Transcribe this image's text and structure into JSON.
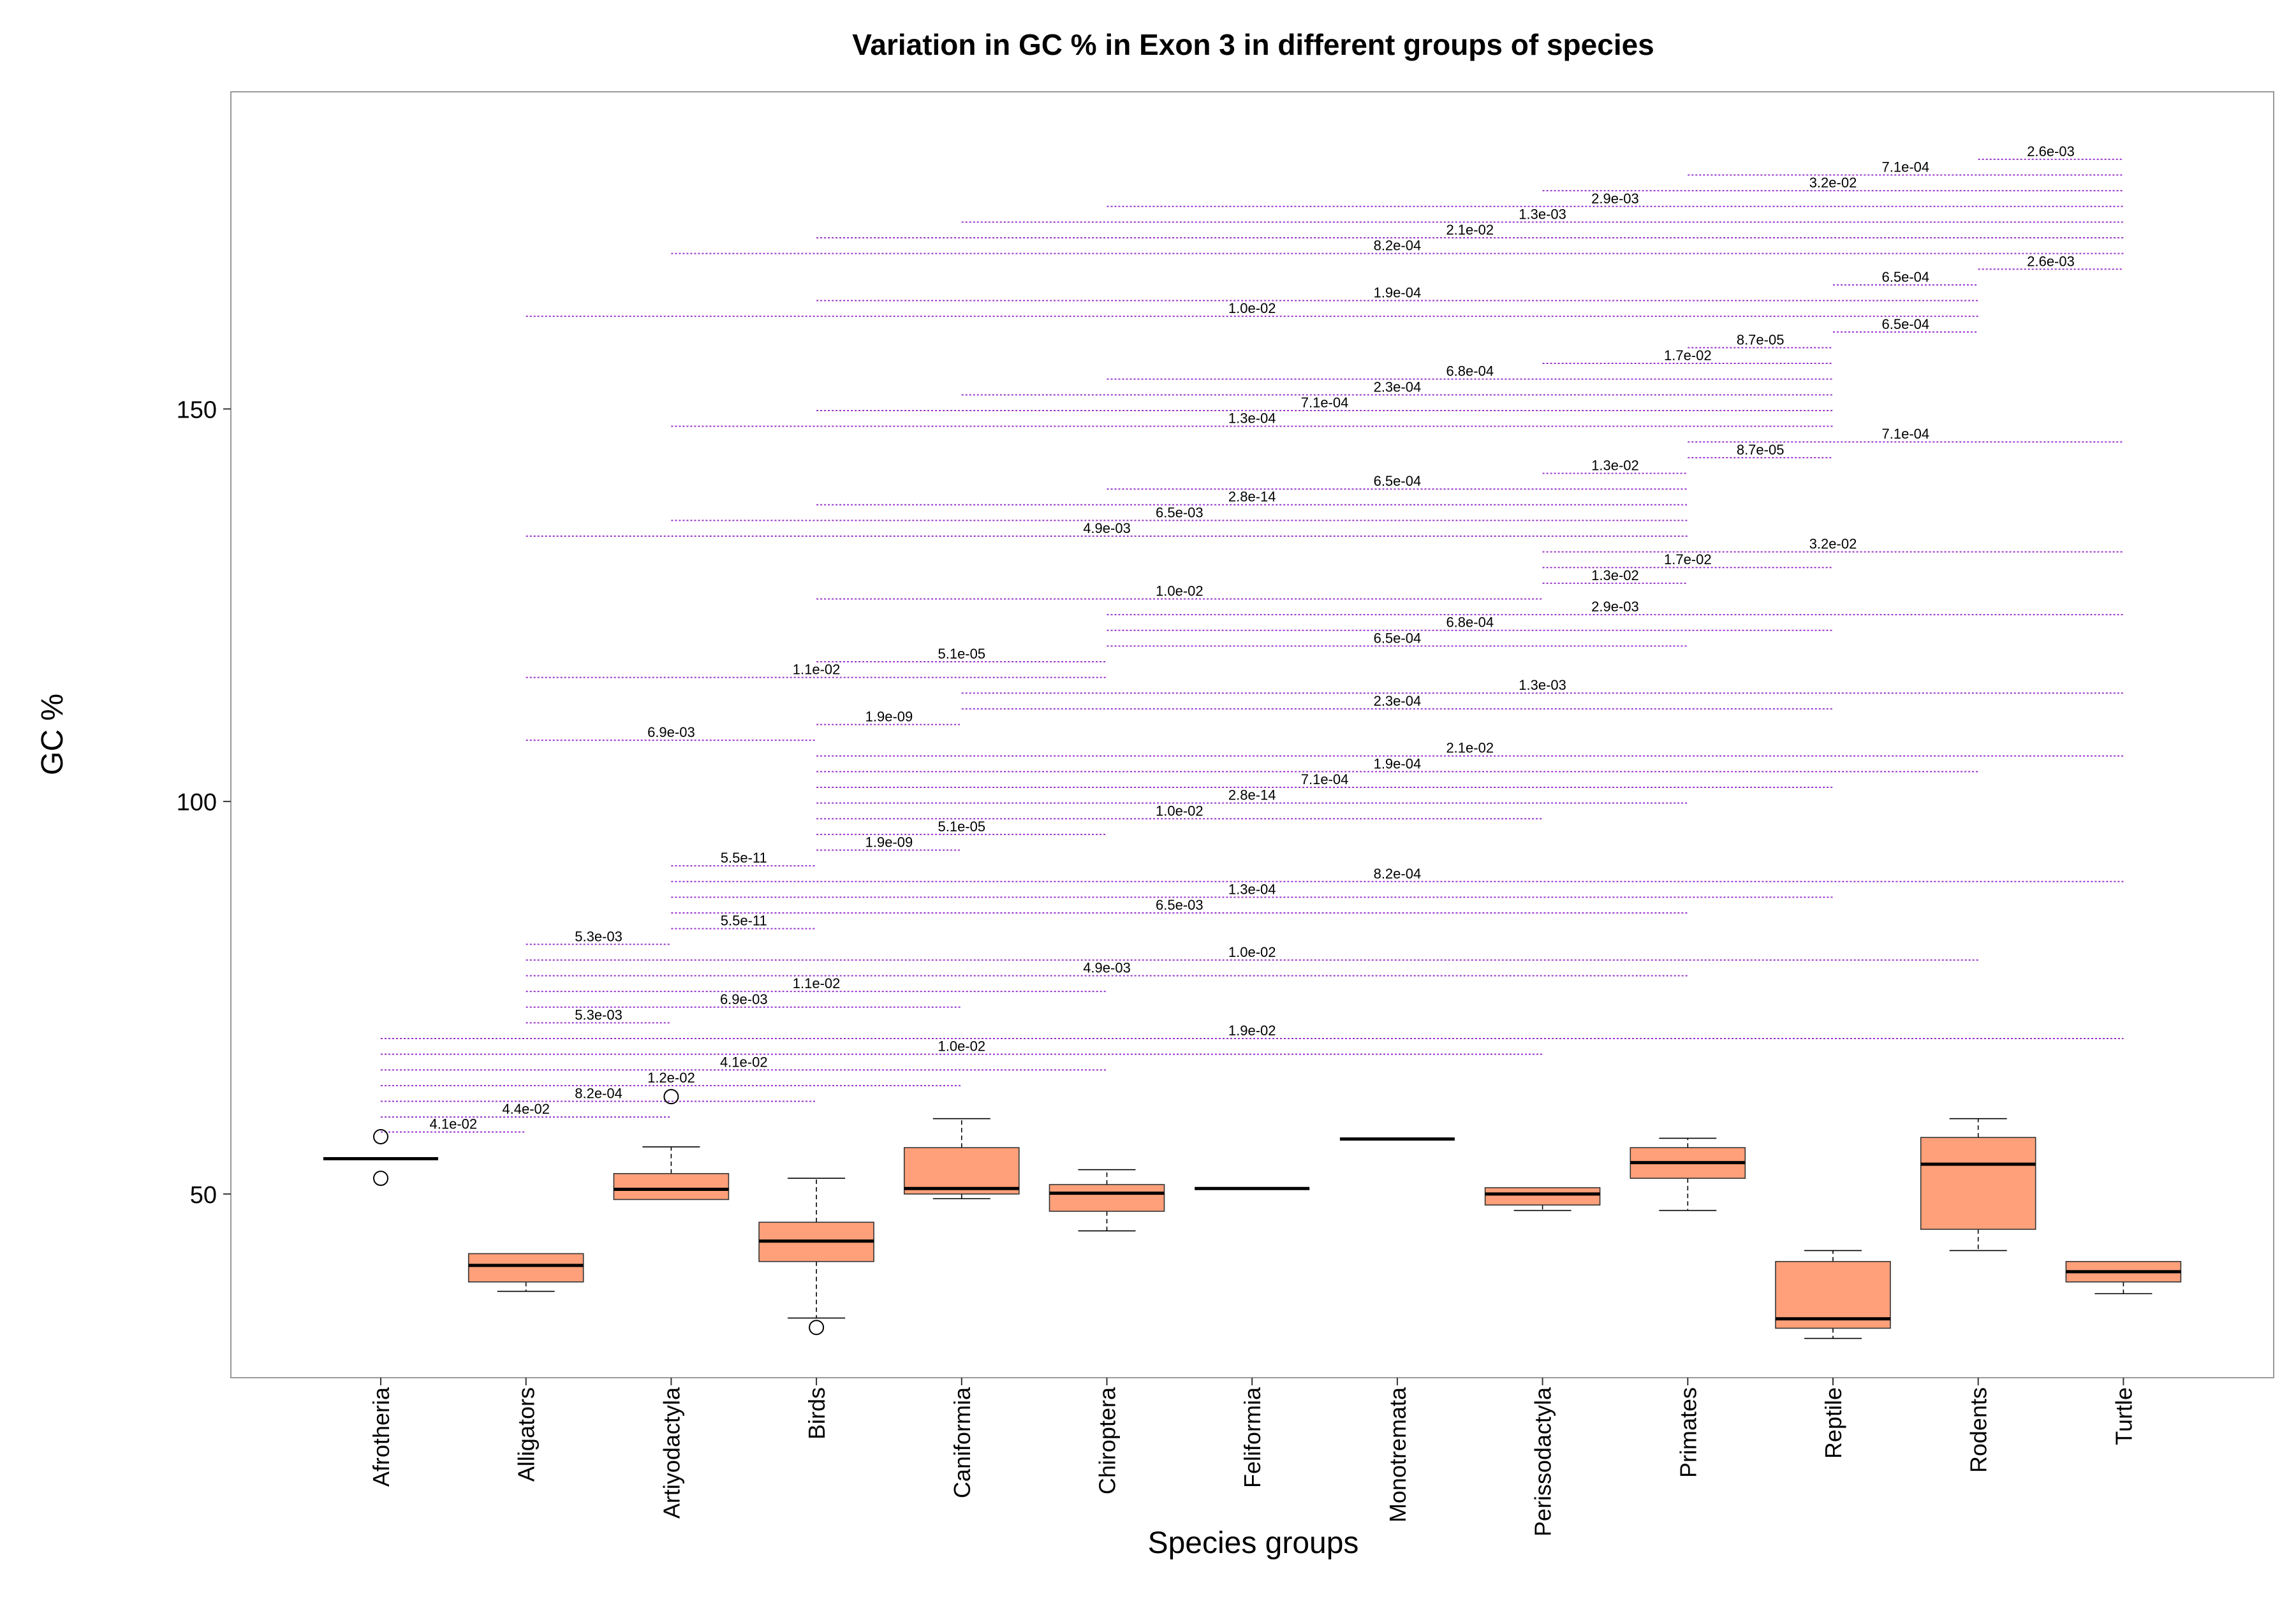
{
  "chart_data": {
    "type": "box",
    "title": "Variation in GC % in Exon 3 in different groups of species",
    "xlabel": "Species groups",
    "ylabel": "GC %",
    "ylim": [
      26.6,
      190.4
    ],
    "yticks": [
      50,
      100,
      150
    ],
    "grid": false,
    "legend": "none",
    "categories": [
      "Afrotheria",
      "Alligators",
      "Artiyodactyla",
      "Birds",
      "Caniformia",
      "Chiroptera",
      "Feliformia",
      "Monotremata",
      "Perissodactyla",
      "Primates",
      "Reptile",
      "Rodents",
      "Turtle"
    ],
    "boxes": [
      {
        "q1": 54.5,
        "median": 54.5,
        "q3": 54.5,
        "lower": 54.5,
        "upper": 54.5,
        "outliers": [
          57.3,
          52.0
        ]
      },
      {
        "q1": 38.8,
        "median": 40.9,
        "q3": 42.4,
        "lower": 37.6,
        "upper": 42.4,
        "outliers": []
      },
      {
        "q1": 49.3,
        "median": 50.6,
        "q3": 52.6,
        "lower": 49.3,
        "upper": 56.0,
        "outliers": [
          62.4
        ]
      },
      {
        "q1": 41.4,
        "median": 44.0,
        "q3": 46.4,
        "lower": 34.2,
        "upper": 52.0,
        "outliers": [
          33.0
        ]
      },
      {
        "q1": 50.0,
        "median": 50.7,
        "q3": 55.9,
        "lower": 49.4,
        "upper": 59.6,
        "outliers": []
      },
      {
        "q1": 47.8,
        "median": 50.1,
        "q3": 51.2,
        "lower": 45.3,
        "upper": 53.1,
        "outliers": []
      },
      {
        "q1": 50.7,
        "median": 50.7,
        "q3": 50.7,
        "lower": 50.7,
        "upper": 50.7,
        "outliers": []
      },
      {
        "q1": 57.0,
        "median": 57.0,
        "q3": 57.0,
        "lower": 57.0,
        "upper": 57.0,
        "outliers": []
      },
      {
        "q1": 48.6,
        "median": 50.0,
        "q3": 50.8,
        "lower": 47.9,
        "upper": 50.8,
        "outliers": []
      },
      {
        "q1": 52.0,
        "median": 54.0,
        "q3": 55.9,
        "lower": 47.9,
        "upper": 57.1,
        "outliers": []
      },
      {
        "q1": 32.9,
        "median": 34.1,
        "q3": 41.4,
        "lower": 31.6,
        "upper": 42.8,
        "outliers": []
      },
      {
        "q1": 45.5,
        "median": 53.8,
        "q3": 57.2,
        "lower": 42.8,
        "upper": 59.6,
        "outliers": []
      },
      {
        "q1": 38.8,
        "median": 40.1,
        "q3": 41.4,
        "lower": 37.3,
        "upper": 41.4,
        "outliers": []
      }
    ],
    "colors": {
      "box_fill": "#FFA07A",
      "bracket": "#9A32CD",
      "axis_frame": "#999999"
    },
    "comparisons": [
      {
        "from": 0,
        "to": 1,
        "y": 57.9,
        "label": "4.1e-02"
      },
      {
        "from": 0,
        "to": 2,
        "y": 59.8,
        "label": "4.4e-02"
      },
      {
        "from": 0,
        "to": 3,
        "y": 61.8,
        "label": "8.2e-04"
      },
      {
        "from": 0,
        "to": 4,
        "y": 63.8,
        "label": "1.2e-02"
      },
      {
        "from": 0,
        "to": 5,
        "y": 65.8,
        "label": "4.1e-02"
      },
      {
        "from": 0,
        "to": 8,
        "y": 67.8,
        "label": "1.0e-02"
      },
      {
        "from": 0,
        "to": 12,
        "y": 69.8,
        "label": "1.9e-02"
      },
      {
        "from": 1,
        "to": 2,
        "y": 71.8,
        "label": "5.3e-03"
      },
      {
        "from": 1,
        "to": 4,
        "y": 73.8,
        "label": "6.9e-03"
      },
      {
        "from": 1,
        "to": 5,
        "y": 75.8,
        "label": "1.1e-02"
      },
      {
        "from": 1,
        "to": 9,
        "y": 77.8,
        "label": "4.9e-03"
      },
      {
        "from": 1,
        "to": 11,
        "y": 79.8,
        "label": "1.0e-02"
      },
      {
        "from": 1,
        "to": 2,
        "y": 81.8,
        "label": "5.3e-03"
      },
      {
        "from": 2,
        "to": 3,
        "y": 83.8,
        "label": "5.5e-11"
      },
      {
        "from": 2,
        "to": 9,
        "y": 85.8,
        "label": "6.5e-03"
      },
      {
        "from": 2,
        "to": 10,
        "y": 87.8,
        "label": "1.3e-04"
      },
      {
        "from": 2,
        "to": 12,
        "y": 89.8,
        "label": "8.2e-04"
      },
      {
        "from": 2,
        "to": 3,
        "y": 91.8,
        "label": "5.5e-11"
      },
      {
        "from": 3,
        "to": 4,
        "y": 93.8,
        "label": "1.9e-09"
      },
      {
        "from": 3,
        "to": 5,
        "y": 95.8,
        "label": "5.1e-05"
      },
      {
        "from": 3,
        "to": 8,
        "y": 97.8,
        "label": "1.0e-02"
      },
      {
        "from": 3,
        "to": 9,
        "y": 99.8,
        "label": "2.8e-14"
      },
      {
        "from": 3,
        "to": 10,
        "y": 101.8,
        "label": "7.1e-04"
      },
      {
        "from": 3,
        "to": 11,
        "y": 103.8,
        "label": "1.9e-04"
      },
      {
        "from": 3,
        "to": 12,
        "y": 105.8,
        "label": "2.1e-02"
      },
      {
        "from": 1,
        "to": 3,
        "y": 107.8,
        "label": "6.9e-03"
      },
      {
        "from": 3,
        "to": 4,
        "y": 109.8,
        "label": "1.9e-09"
      },
      {
        "from": 4,
        "to": 10,
        "y": 111.8,
        "label": "2.3e-04"
      },
      {
        "from": 4,
        "to": 12,
        "y": 113.8,
        "label": "1.3e-03"
      },
      {
        "from": 1,
        "to": 5,
        "y": 115.8,
        "label": "1.1e-02"
      },
      {
        "from": 3,
        "to": 5,
        "y": 117.8,
        "label": "5.1e-05"
      },
      {
        "from": 5,
        "to": 9,
        "y": 119.8,
        "label": "6.5e-04"
      },
      {
        "from": 5,
        "to": 10,
        "y": 121.8,
        "label": "6.8e-04"
      },
      {
        "from": 5,
        "to": 12,
        "y": 123.8,
        "label": "2.9e-03"
      },
      {
        "from": 3,
        "to": 8,
        "y": 125.8,
        "label": "1.0e-02"
      },
      {
        "from": 8,
        "to": 9,
        "y": 127.8,
        "label": "1.3e-02"
      },
      {
        "from": 8,
        "to": 10,
        "y": 129.8,
        "label": "1.7e-02"
      },
      {
        "from": 8,
        "to": 12,
        "y": 131.8,
        "label": "3.2e-02"
      },
      {
        "from": 1,
        "to": 9,
        "y": 133.8,
        "label": "4.9e-03"
      },
      {
        "from": 2,
        "to": 9,
        "y": 135.8,
        "label": "6.5e-03"
      },
      {
        "from": 3,
        "to": 9,
        "y": 137.8,
        "label": "2.8e-14"
      },
      {
        "from": 5,
        "to": 9,
        "y": 139.8,
        "label": "6.5e-04"
      },
      {
        "from": 8,
        "to": 9,
        "y": 141.8,
        "label": "1.3e-02"
      },
      {
        "from": 9,
        "to": 10,
        "y": 143.8,
        "label": "8.7e-05"
      },
      {
        "from": 9,
        "to": 12,
        "y": 145.8,
        "label": "7.1e-04"
      },
      {
        "from": 2,
        "to": 10,
        "y": 147.8,
        "label": "1.3e-04"
      },
      {
        "from": 3,
        "to": 10,
        "y": 149.8,
        "label": "7.1e-04"
      },
      {
        "from": 4,
        "to": 10,
        "y": 151.8,
        "label": "2.3e-04"
      },
      {
        "from": 5,
        "to": 10,
        "y": 153.8,
        "label": "6.8e-04"
      },
      {
        "from": 8,
        "to": 10,
        "y": 155.8,
        "label": "1.7e-02"
      },
      {
        "from": 9,
        "to": 10,
        "y": 157.8,
        "label": "8.7e-05"
      },
      {
        "from": 10,
        "to": 11,
        "y": 159.8,
        "label": "6.5e-04"
      },
      {
        "from": 1,
        "to": 11,
        "y": 161.8,
        "label": "1.0e-02"
      },
      {
        "from": 3,
        "to": 11,
        "y": 163.8,
        "label": "1.9e-04"
      },
      {
        "from": 10,
        "to": 11,
        "y": 165.8,
        "label": "6.5e-04"
      },
      {
        "from": 11,
        "to": 12,
        "y": 167.8,
        "label": "2.6e-03"
      },
      {
        "from": 2,
        "to": 12,
        "y": 169.8,
        "label": "8.2e-04"
      },
      {
        "from": 3,
        "to": 12,
        "y": 171.8,
        "label": "2.1e-02"
      },
      {
        "from": 4,
        "to": 12,
        "y": 173.8,
        "label": "1.3e-03"
      },
      {
        "from": 5,
        "to": 12,
        "y": 175.8,
        "label": "2.9e-03"
      },
      {
        "from": 8,
        "to": 12,
        "y": 177.8,
        "label": "3.2e-02"
      },
      {
        "from": 9,
        "to": 12,
        "y": 179.8,
        "label": "7.1e-04"
      },
      {
        "from": 11,
        "to": 12,
        "y": 181.8,
        "label": "2.6e-03"
      }
    ]
  }
}
